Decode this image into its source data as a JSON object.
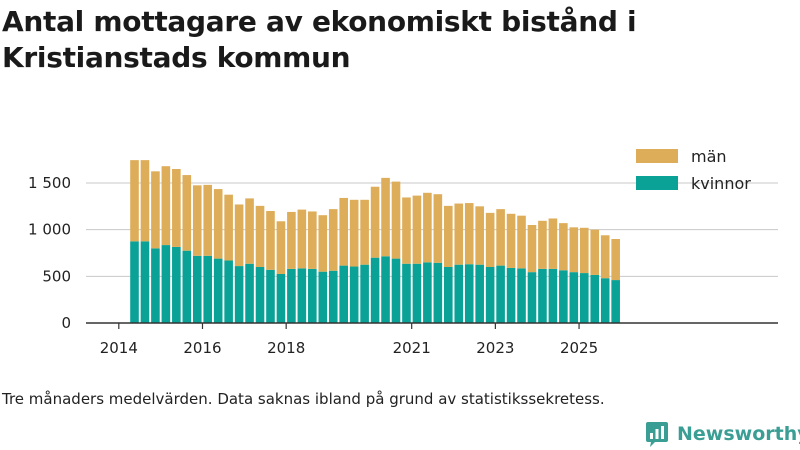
{
  "chart_data": {
    "type": "bar",
    "stacked": true,
    "title": "Antal mottagare av ekonomiskt bistånd i Kristianstads kommun",
    "note": "Tre månaders medelvärden. Data saknas ibland på grund av statistikssekretess.",
    "xlabel": "",
    "ylabel": "",
    "ylim": [
      0,
      1800
    ],
    "y_ticks": [
      {
        "value": 0,
        "label": "0"
      },
      {
        "value": 500,
        "label": "500"
      },
      {
        "value": 1000,
        "label": "1 000"
      },
      {
        "value": 1500,
        "label": "1 500"
      }
    ],
    "x_ticks": [
      {
        "label": "2014",
        "position": -1.5
      },
      {
        "label": "2016",
        "position": 6.5
      },
      {
        "label": "2018",
        "position": 14.5
      },
      {
        "label": "2021",
        "position": 26.5
      },
      {
        "label": "2023",
        "position": 34.5
      },
      {
        "label": "2025",
        "position": 42.5
      }
    ],
    "legend": "top-right",
    "series": [
      {
        "name": "kvinnor",
        "color": "#0aa297",
        "values": [
          875,
          875,
          800,
          835,
          815,
          775,
          720,
          720,
          690,
          670,
          610,
          635,
          600,
          570,
          525,
          580,
          585,
          580,
          550,
          560,
          615,
          605,
          625,
          700,
          715,
          690,
          635,
          635,
          650,
          645,
          600,
          625,
          630,
          625,
          600,
          615,
          590,
          585,
          545,
          580,
          580,
          565,
          545,
          535,
          515,
          480,
          460
        ]
      },
      {
        "name": "män",
        "color": "#ddad5a",
        "values": [
          870,
          870,
          825,
          845,
          835,
          810,
          755,
          760,
          745,
          705,
          660,
          700,
          655,
          630,
          565,
          610,
          630,
          615,
          605,
          660,
          725,
          715,
          695,
          760,
          840,
          825,
          710,
          730,
          745,
          735,
          655,
          655,
          655,
          625,
          580,
          605,
          580,
          565,
          505,
          515,
          540,
          505,
          480,
          485,
          485,
          460,
          440
        ]
      }
    ]
  },
  "brand": {
    "name": "Newsworthy",
    "icon": "newsworthy-logo-icon"
  }
}
